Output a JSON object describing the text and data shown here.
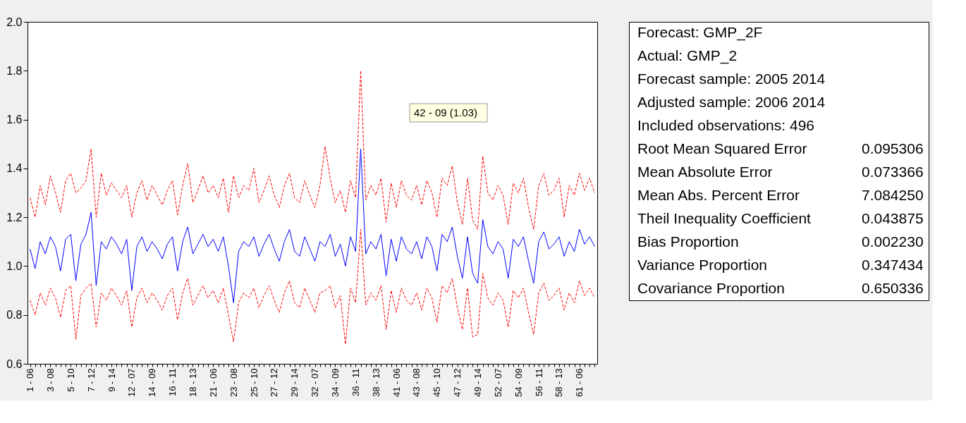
{
  "chart_data": [
    {
      "type": "line",
      "categories": [
        "1 - 06",
        null,
        null,
        null,
        "3 - 08",
        null,
        null,
        null,
        "5 - 10",
        null,
        null,
        null,
        "7 - 12",
        null,
        null,
        null,
        "9 - 14",
        null,
        null,
        null,
        "12 - 07",
        null,
        null,
        null,
        "14 - 09",
        null,
        null,
        null,
        "16 - 11",
        null,
        null,
        null,
        "18 - 13",
        null,
        null,
        null,
        "21 - 06",
        null,
        null,
        null,
        "23 - 08",
        null,
        null,
        null,
        "25 - 10",
        null,
        null,
        null,
        "27 - 12",
        null,
        null,
        null,
        "29 - 14",
        null,
        null,
        null,
        "32 - 07",
        null,
        null,
        null,
        "34 - 09",
        null,
        null,
        null,
        "36 - 11",
        null,
        null,
        null,
        "38 - 13",
        null,
        null,
        null,
        "41 - 06",
        null,
        null,
        null,
        "43 - 08",
        null,
        null,
        null,
        "45 - 10",
        null,
        null,
        null,
        "47 - 12",
        null,
        null,
        null,
        "49 - 14",
        null,
        null,
        null,
        "52 - 07",
        null,
        null,
        null,
        "54 - 09",
        null,
        null,
        null,
        "56 - 11",
        null,
        null,
        null,
        "58 - 13",
        null,
        null,
        null,
        "61 - 06",
        null,
        null,
        null
      ],
      "ylim": [
        0.6,
        2.0
      ],
      "yticks": [
        0.6,
        0.8,
        {
          "value": 1,
          "label": "1.0"
        },
        1.2,
        1.4,
        1.6,
        1.8,
        {
          "value": 2,
          "label": "2.0"
        }
      ],
      "annotations": [
        "42 - 09  (1.03)"
      ],
      "series": [
        {
          "color": "#0000ff",
          "line_style": "solid",
          "values": [
            1.07,
            0.99,
            1.1,
            1.05,
            1.12,
            1.08,
            0.98,
            1.11,
            1.13,
            0.94,
            1.09,
            1.13,
            1.22,
            0.92,
            1.1,
            1.07,
            1.12,
            1.09,
            1.05,
            1.11,
            0.9,
            1.08,
            1.12,
            1.06,
            1.1,
            1.07,
            1.03,
            1.09,
            1.12,
            0.98,
            1.1,
            1.16,
            1.05,
            1.09,
            1.13,
            1.08,
            1.11,
            1.06,
            1.12,
            1.0,
            0.85,
            1.06,
            1.1,
            1.08,
            1.12,
            1.04,
            1.09,
            1.13,
            1.07,
            1.02,
            1.1,
            1.15,
            1.06,
            1.04,
            1.12,
            1.07,
            1.02,
            1.1,
            1.08,
            1.13,
            1.04,
            1.09,
            1.0,
            1.12,
            1.06,
            1.48,
            1.05,
            1.1,
            1.07,
            1.13,
            0.96,
            1.11,
            1.02,
            1.12,
            1.07,
            1.05,
            1.1,
            1.03,
            1.12,
            1.08,
            0.98,
            1.13,
            1.1,
            1.16,
            1.04,
            0.95,
            1.12,
            0.97,
            0.93,
            1.19,
            1.08,
            1.05,
            1.1,
            1.07,
            0.95,
            1.11,
            1.08,
            1.12,
            1.02,
            0.93,
            1.1,
            1.14,
            1.07,
            1.09,
            1.12,
            1.04,
            1.1,
            1.06,
            1.15,
            1.09,
            1.12,
            1.08
          ]
        },
        {
          "color": "#ff0000",
          "line_style": "dashed",
          "values": [
            1.28,
            1.2,
            1.33,
            1.25,
            1.37,
            1.3,
            1.22,
            1.35,
            1.38,
            1.3,
            1.32,
            1.35,
            1.48,
            1.2,
            1.38,
            1.29,
            1.34,
            1.31,
            1.28,
            1.33,
            1.2,
            1.3,
            1.35,
            1.27,
            1.33,
            1.29,
            1.25,
            1.31,
            1.35,
            1.21,
            1.33,
            1.42,
            1.26,
            1.31,
            1.37,
            1.3,
            1.33,
            1.28,
            1.36,
            1.22,
            1.37,
            1.28,
            1.33,
            1.31,
            1.4,
            1.26,
            1.31,
            1.37,
            1.29,
            1.24,
            1.33,
            1.38,
            1.28,
            1.26,
            1.35,
            1.29,
            1.24,
            1.33,
            1.49,
            1.36,
            1.26,
            1.31,
            1.22,
            1.35,
            1.28,
            1.8,
            1.27,
            1.33,
            1.29,
            1.36,
            1.18,
            1.34,
            1.24,
            1.35,
            1.29,
            1.27,
            1.33,
            1.25,
            1.35,
            1.3,
            1.2,
            1.36,
            1.33,
            1.41,
            1.26,
            1.17,
            1.36,
            1.19,
            1.15,
            1.45,
            1.3,
            1.27,
            1.33,
            1.29,
            1.17,
            1.34,
            1.3,
            1.36,
            1.24,
            1.15,
            1.33,
            1.38,
            1.29,
            1.31,
            1.36,
            1.2,
            1.33,
            1.29,
            1.38,
            1.31,
            1.36,
            1.3
          ]
        },
        {
          "color": "#ff0000",
          "line_style": "dashed",
          "values": [
            0.86,
            0.8,
            0.89,
            0.84,
            0.91,
            0.87,
            0.79,
            0.9,
            0.92,
            0.7,
            0.88,
            0.91,
            0.93,
            0.75,
            0.89,
            0.86,
            0.91,
            0.88,
            0.84,
            0.9,
            0.75,
            0.87,
            0.91,
            0.85,
            0.89,
            0.86,
            0.82,
            0.88,
            0.91,
            0.78,
            0.89,
            0.95,
            0.84,
            0.88,
            0.92,
            0.87,
            0.9,
            0.85,
            0.91,
            0.8,
            0.69,
            0.85,
            0.89,
            0.87,
            0.91,
            0.83,
            0.88,
            0.92,
            0.86,
            0.81,
            0.89,
            0.94,
            0.85,
            0.83,
            0.91,
            0.86,
            0.81,
            0.89,
            0.9,
            0.92,
            0.83,
            0.88,
            0.68,
            0.91,
            0.85,
            1.15,
            0.84,
            0.89,
            0.86,
            0.92,
            0.74,
            0.9,
            0.81,
            0.91,
            0.86,
            0.84,
            0.89,
            0.82,
            0.91,
            0.87,
            0.77,
            0.92,
            0.89,
            0.95,
            0.83,
            0.74,
            0.91,
            0.71,
            0.72,
            0.97,
            0.87,
            0.84,
            0.89,
            0.86,
            0.75,
            0.9,
            0.87,
            0.91,
            0.81,
            0.72,
            0.89,
            0.93,
            0.86,
            0.88,
            0.91,
            0.82,
            0.89,
            0.85,
            0.94,
            0.88,
            0.91,
            0.87
          ]
        }
      ]
    },
    {
      "type": "other",
      "annotations": [
        "Forecast: GMP_2F",
        "Actual: GMP_2",
        "Forecast sample: 2005 2014",
        "Adjusted sample: 2006 2014",
        "Included observations: 496"
      ],
      "categories": [
        "Root Mean Squared Error",
        "Mean Absolute Error",
        "Mean Abs. Percent Error",
        "Theil Inequality Coefficient",
        "Bias Proportion",
        "Variance Proportion",
        "Covariance Proportion"
      ],
      "value_labels": [
        "0.095306",
        "0.073366",
        "7.084250",
        "0.043875",
        "0.002230",
        "0.347434",
        "0.650336"
      ]
    }
  ]
}
